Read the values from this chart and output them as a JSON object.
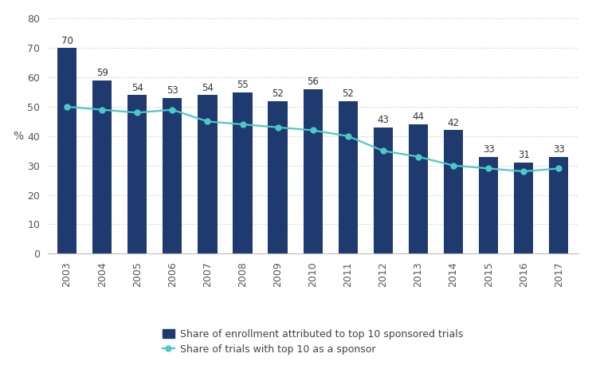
{
  "years": [
    2003,
    2004,
    2005,
    2006,
    2007,
    2008,
    2009,
    2010,
    2011,
    2012,
    2013,
    2014,
    2015,
    2016,
    2017
  ],
  "bar_values": [
    70,
    59,
    54,
    53,
    54,
    55,
    52,
    56,
    52,
    43,
    44,
    42,
    33,
    31,
    33
  ],
  "line_values": [
    50,
    49,
    48,
    49,
    45,
    44,
    43,
    42,
    40,
    35,
    33,
    30,
    29,
    28,
    29
  ],
  "bar_color": "#1e3a6e",
  "line_color": "#4dc8c8",
  "bar_label_color": "#333333",
  "ylabel": "%",
  "ylim": [
    0,
    80
  ],
  "yticks": [
    0,
    10,
    20,
    30,
    40,
    50,
    60,
    70,
    80
  ],
  "legend_bar_label": "Share of enrollment attributed to top 10 sponsored trials",
  "legend_line_label": "Share of trials with top 10 as a sponsor",
  "background_color": "#ffffff",
  "grid_color": "#c8c8c8",
  "bar_width": 0.55
}
